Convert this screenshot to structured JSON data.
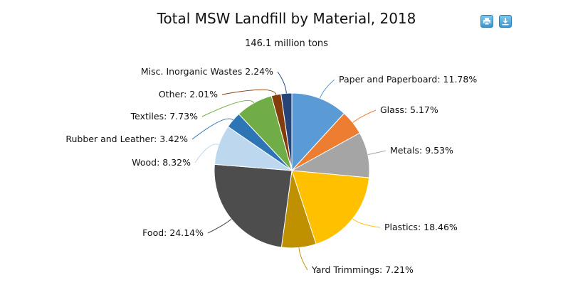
{
  "title": "Total MSW Landfill by Material, 2018",
  "subtitle": "146.1 million tons",
  "toolbar": {
    "print_icon": "printer-icon",
    "download_icon": "download-icon"
  },
  "chart_data": {
    "type": "pie",
    "title": "Total MSW Landfill by Material, 2018",
    "subtitle": "146.1 million tons",
    "start_angle_deg": 0,
    "direction": "clockwise",
    "slices": [
      {
        "name": "Paper and Paperboard",
        "value": 11.78,
        "label": "Paper and Paperboard: 11.78%",
        "color": "#5b9bd5"
      },
      {
        "name": "Glass",
        "value": 5.17,
        "label": "Glass: 5.17%",
        "color": "#ed7d31"
      },
      {
        "name": "Metals",
        "value": 9.53,
        "label": "Metals: 9.53%",
        "color": "#a5a5a5"
      },
      {
        "name": "Plastics",
        "value": 18.46,
        "label": "Plastics: 18.46%",
        "color": "#ffc000"
      },
      {
        "name": "Yard Trimmings",
        "value": 7.21,
        "label": "Yard Trimmings: 7.21%",
        "color": "#bf9000"
      },
      {
        "name": "Food",
        "value": 24.14,
        "label": "Food: 24.14%",
        "color": "#4d4d4d"
      },
      {
        "name": "Wood",
        "value": 8.32,
        "label": "Wood: 8.32%",
        "color": "#bdd7ee"
      },
      {
        "name": "Rubber and Leather",
        "value": 3.42,
        "label": "Rubber and Leather: 3.42%",
        "color": "#2e75b6"
      },
      {
        "name": "Textiles",
        "value": 7.73,
        "label": "Textiles: 7.73%",
        "color": "#70ad47"
      },
      {
        "name": "Other",
        "value": 2.01,
        "label": "Other: 2.01%",
        "color": "#843c0c"
      },
      {
        "name": "Misc. Inorganic Wastes",
        "value": 2.24,
        "label": "Misc. Inorganic Wastes 2.24%",
        "color": "#264478"
      }
    ]
  }
}
